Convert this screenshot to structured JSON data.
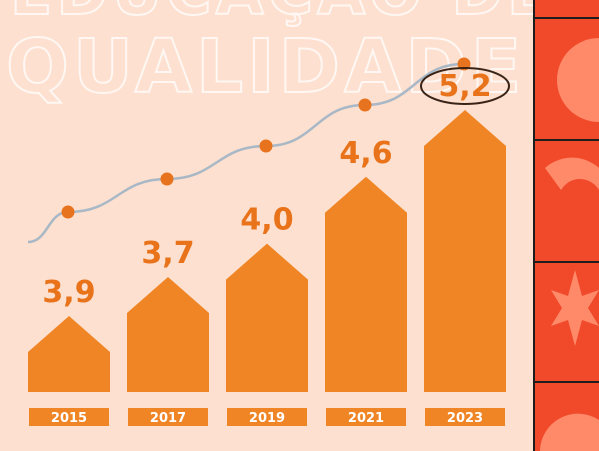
{
  "header": {
    "title_line1": "EDUCAÇÃO DE",
    "title_line2": "QUALIDADE"
  },
  "colors": {
    "background": "#fde0cf",
    "bar": "#f08526",
    "bar_dark": "#e2701a",
    "value_text": "#e9731a",
    "trend_line": "#a9b8c6",
    "trend_point": "#e8731e",
    "highlight_ellipse": "#3a2418",
    "panel_red": "#f04a2a",
    "panel_light": "#ff8a6a",
    "panel_border": "#1d1d1d"
  },
  "chart_data": {
    "type": "bar",
    "categories": [
      "2015",
      "2017",
      "2019",
      "2021",
      "2023"
    ],
    "values": [
      3.9,
      3.7,
      4.0,
      4.6,
      5.2
    ],
    "value_labels": [
      "3,9",
      "3,7",
      "4,0",
      "4,6",
      "5,2"
    ],
    "highlighted_category": "2023",
    "trend_line": true,
    "grid": false,
    "legend": "none"
  }
}
